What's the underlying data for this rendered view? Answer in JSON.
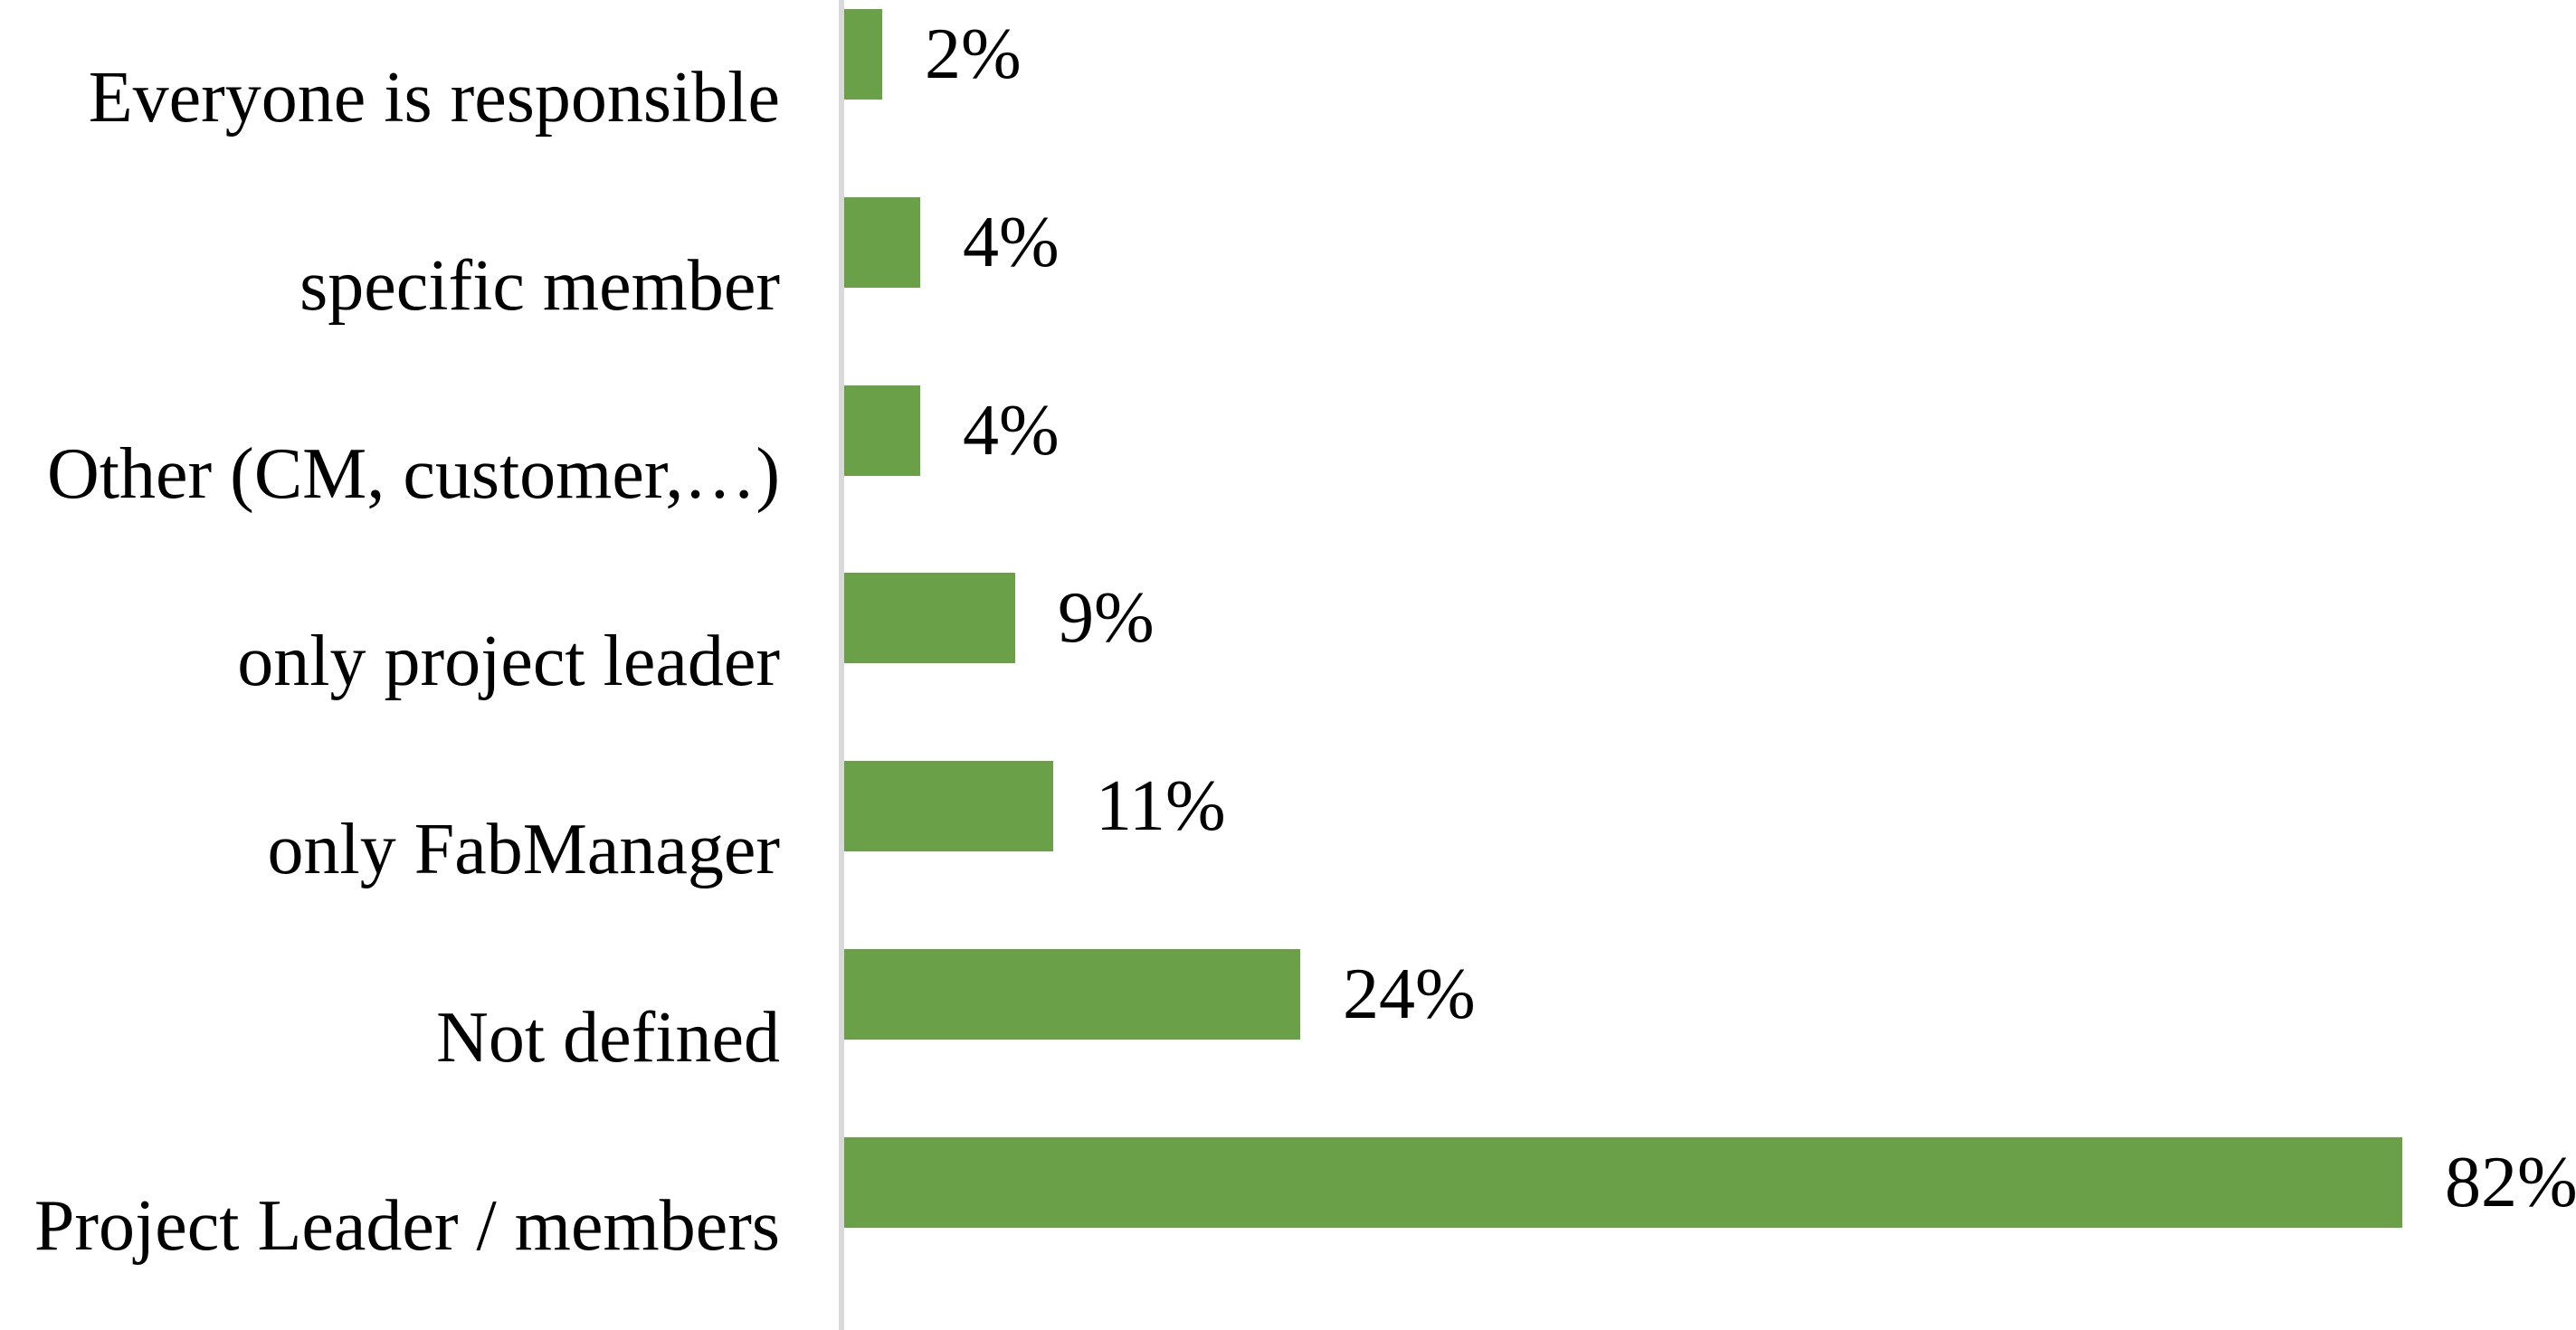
{
  "chart_data": {
    "type": "bar",
    "orientation": "horizontal",
    "title": "",
    "categories": [
      "Everyone is responsible",
      "specific member",
      "Other (CM, customer,…)",
      "only project leader",
      "only FabManager",
      "Not defined",
      "Project Leader / members"
    ],
    "values": [
      2,
      4,
      4,
      9,
      11,
      24,
      82
    ],
    "value_labels": [
      "2%",
      "4%",
      "4%",
      "9%",
      "11%",
      "24%",
      "82%"
    ],
    "unit": "percent",
    "series_name": "",
    "xlabel": "",
    "ylabel": "",
    "xlim": [
      0,
      91
    ],
    "grid": false,
    "legend": false,
    "value_axis_labels_visible": false,
    "bar_color": "#6AA047",
    "axis_line_color": "#D9D9D9",
    "text_color": "#000000",
    "background_color": "#FFFFFF"
  }
}
